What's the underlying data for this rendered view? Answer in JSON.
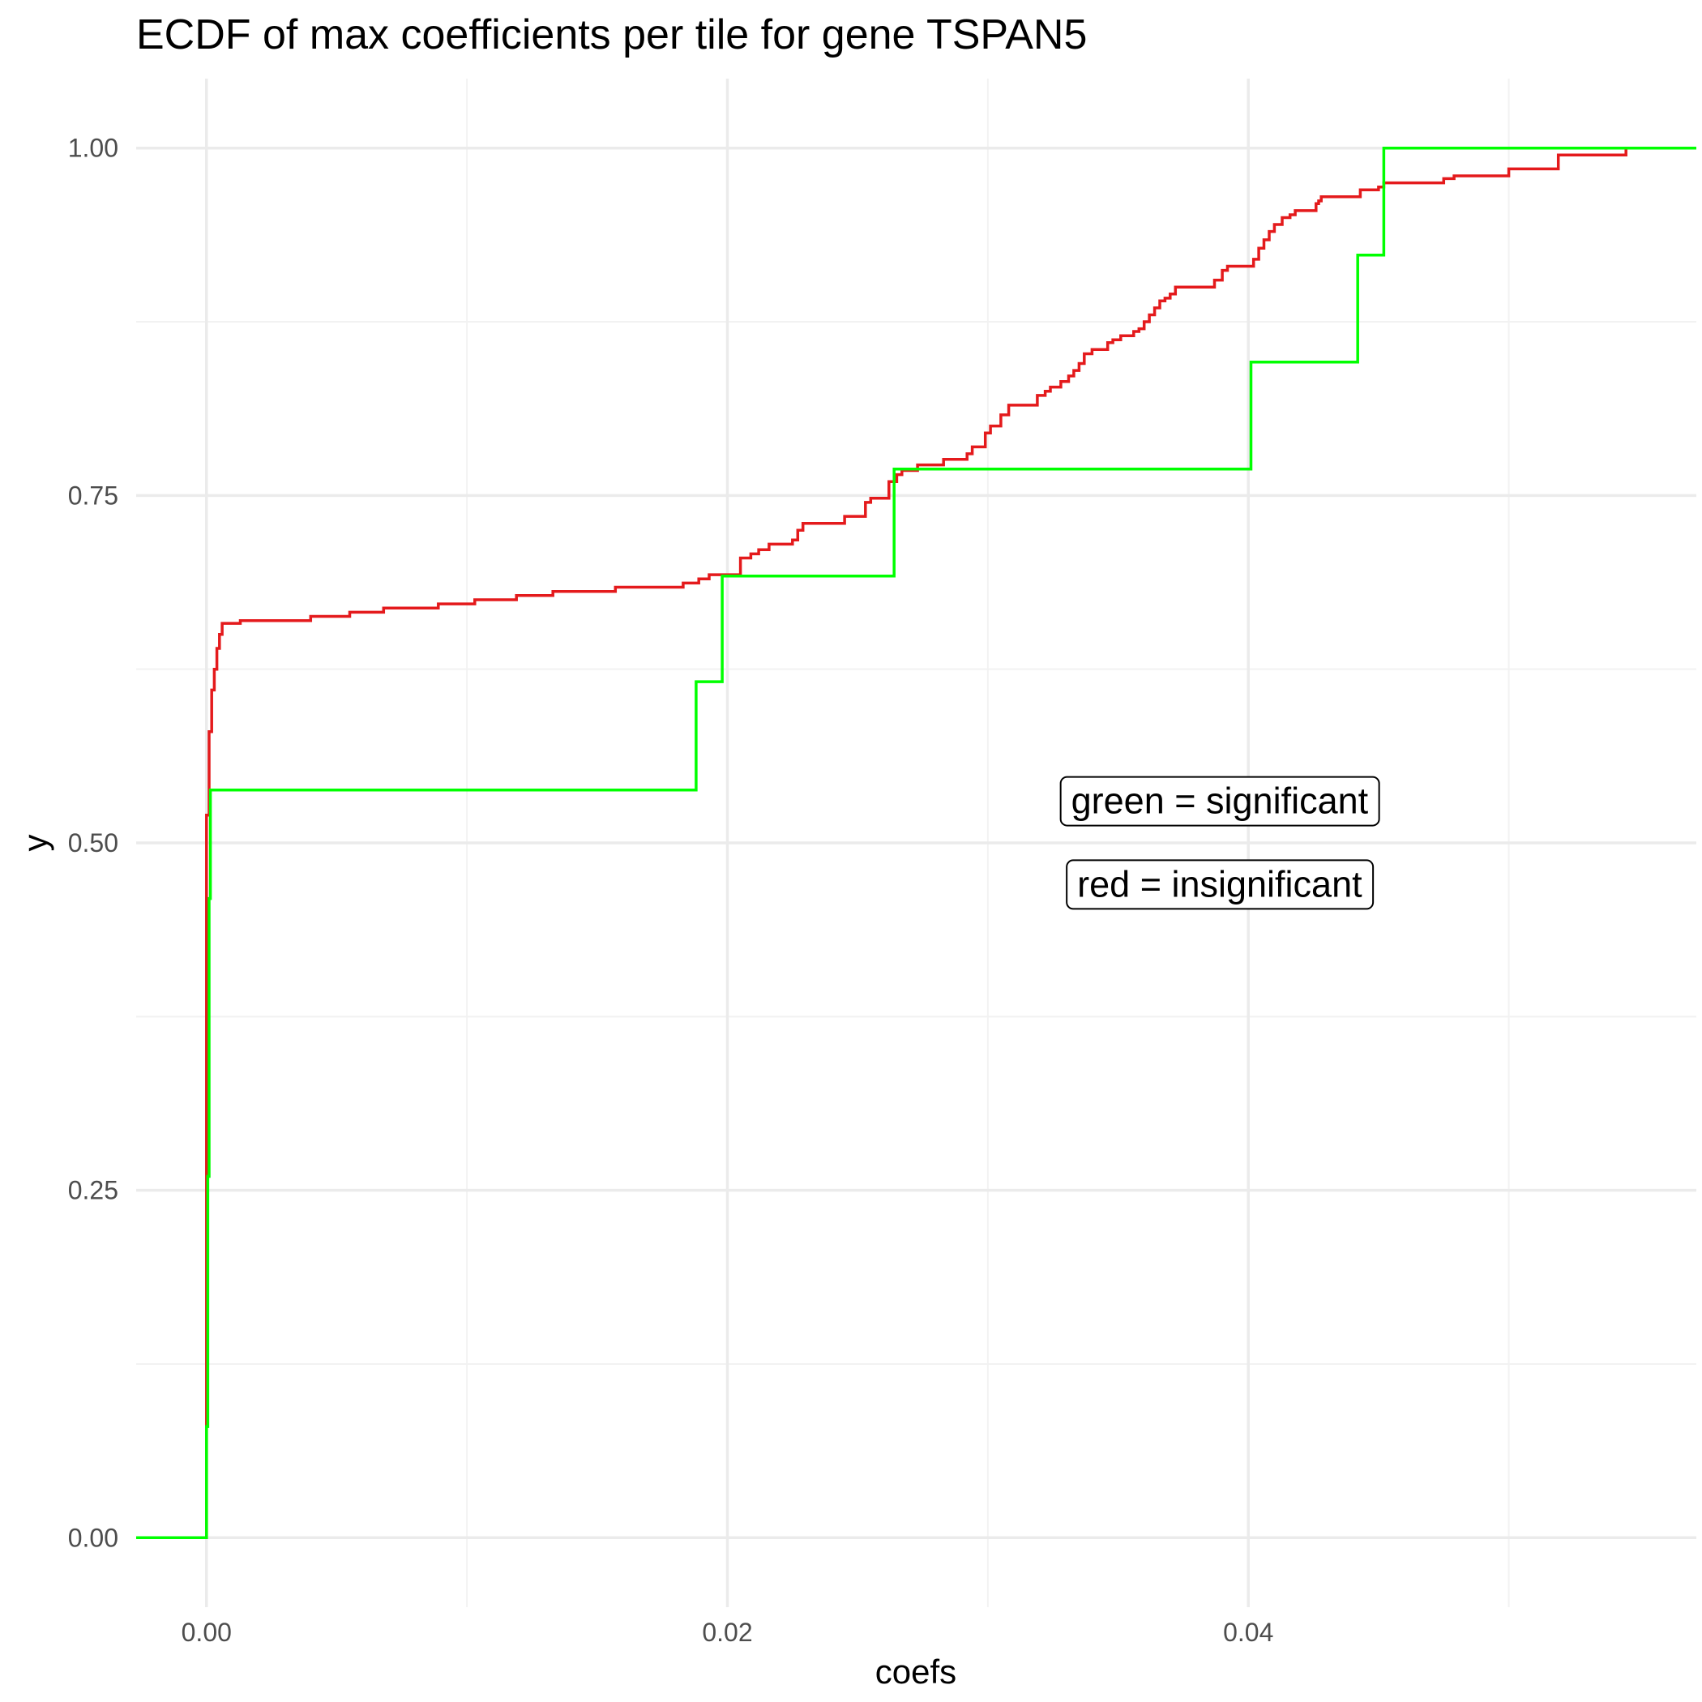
{
  "chart_data": {
    "type": "line",
    "title": "ECDF of max coefficients per tile for gene TSPAN5",
    "xlabel": "coefs",
    "ylabel": "y",
    "xlim": [
      -0.0027,
      0.0572
    ],
    "ylim": [
      -0.05,
      1.05
    ],
    "x_ticks": [
      0.0,
      0.02,
      0.04
    ],
    "x_tick_labels": [
      "0.00",
      "0.02",
      "0.04"
    ],
    "y_ticks": [
      0.0,
      0.25,
      0.5,
      0.75,
      1.0
    ],
    "y_tick_labels": [
      "0.00",
      "0.25",
      "0.50",
      "0.75",
      "1.00"
    ],
    "grid": true,
    "series": [
      {
        "color": "#e41a1c",
        "step": true,
        "x": [
          -0.0027,
          0.0,
          0.0001,
          0.0002,
          0.0003,
          0.0004,
          0.0005,
          0.0006,
          0.0007,
          0.0013,
          0.004,
          0.0055,
          0.0068,
          0.0089,
          0.0103,
          0.0119,
          0.0133,
          0.0157,
          0.0182,
          0.0183,
          0.0185,
          0.0187,
          0.0189,
          0.0191,
          0.0193,
          0.0195,
          0.0205,
          0.0207,
          0.0209,
          0.0212,
          0.0216,
          0.0225,
          0.0227,
          0.0229,
          0.0245,
          0.0247,
          0.0253,
          0.0255,
          0.0262,
          0.0265,
          0.0267,
          0.0269,
          0.0273,
          0.028,
          0.0283,
          0.029,
          0.0292,
          0.0294,
          0.0299,
          0.0301,
          0.0303,
          0.0305,
          0.0308,
          0.0312,
          0.0319,
          0.0322,
          0.0324,
          0.0328,
          0.0331,
          0.0333,
          0.0335,
          0.0337,
          0.034,
          0.0346,
          0.0348,
          0.0351,
          0.0356,
          0.0358,
          0.036,
          0.0362,
          0.0364,
          0.0366,
          0.0368,
          0.037,
          0.0372,
          0.0378,
          0.0387,
          0.039,
          0.0392,
          0.04,
          0.0402,
          0.0404,
          0.0406,
          0.0408,
          0.041,
          0.0413,
          0.0416,
          0.0418,
          0.0425,
          0.0426,
          0.0427,
          0.0428,
          0.0438,
          0.0443,
          0.0448,
          0.045,
          0.0452,
          0.0463,
          0.0475,
          0.0479,
          0.0496,
          0.05,
          0.0519,
          0.0545
        ],
        "y": [
          0.0,
          0.52,
          0.58,
          0.61,
          0.625,
          0.64,
          0.65,
          0.658,
          0.658,
          0.66,
          0.663,
          0.666,
          0.669,
          0.672,
          0.675,
          0.678,
          0.681,
          0.684,
          0.684,
          0.687,
          0.687,
          0.687,
          0.69,
          0.69,
          0.693,
          0.693,
          0.705,
          0.705,
          0.708,
          0.711,
          0.715,
          0.718,
          0.725,
          0.73,
          0.735,
          0.735,
          0.745,
          0.748,
          0.76,
          0.765,
          0.768,
          0.768,
          0.772,
          0.772,
          0.776,
          0.776,
          0.78,
          0.785,
          0.795,
          0.8,
          0.8,
          0.808,
          0.815,
          0.815,
          0.822,
          0.825,
          0.828,
          0.832,
          0.836,
          0.84,
          0.845,
          0.852,
          0.855,
          0.86,
          0.862,
          0.865,
          0.868,
          0.87,
          0.875,
          0.88,
          0.885,
          0.89,
          0.892,
          0.895,
          0.9,
          0.9,
          0.905,
          0.912,
          0.915,
          0.915,
          0.92,
          0.928,
          0.934,
          0.94,
          0.945,
          0.95,
          0.952,
          0.955,
          0.955,
          0.96,
          0.962,
          0.965,
          0.965,
          0.97,
          0.97,
          0.972,
          0.975,
          0.975,
          0.978,
          0.98,
          0.98,
          0.985,
          0.995,
          1.0
        ]
      },
      {
        "color": "#00ff00",
        "step": true,
        "x": [
          -0.0027,
          0.0,
          5e-05,
          0.0001,
          0.00015,
          0.0188,
          0.0198,
          0.0264,
          0.0401,
          0.0442,
          0.0452,
          0.0572
        ],
        "y": [
          0.0,
          0.08,
          0.26,
          0.46,
          0.538,
          0.616,
          0.692,
          0.769,
          0.846,
          0.923,
          1.0,
          1.0
        ]
      }
    ],
    "annotations": [
      {
        "text": "green = significant",
        "x": 0.0389,
        "y": 0.53
      },
      {
        "text": "red = insignificant",
        "x": 0.0389,
        "y": 0.47
      }
    ]
  }
}
